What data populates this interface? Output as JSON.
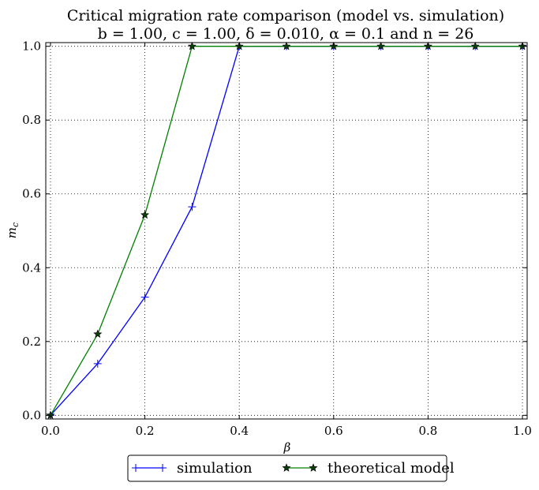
{
  "chart_data": {
    "type": "line",
    "title": "Critical migration rate comparison (model vs. simulation)",
    "subtitle": "b = 1.00, c = 1.00, δ = 0.010, α = 0.1 and n = 26",
    "xlabel": "β",
    "ylabel": "m_c",
    "xlim": [
      -0.01,
      1.01
    ],
    "ylim": [
      -0.01,
      1.01
    ],
    "x_ticks": [
      "0.0",
      "0.2",
      "0.4",
      "0.6",
      "0.8",
      "1.0"
    ],
    "y_ticks": [
      "0.0",
      "0.2",
      "0.4",
      "0.6",
      "0.8",
      "1.0"
    ],
    "grid": true,
    "legend_position": "bottom-center, below plot",
    "x": [
      0.0,
      0.1,
      0.2,
      0.3,
      0.4,
      0.5,
      0.6,
      0.7,
      0.8,
      0.9,
      1.0
    ],
    "series": [
      {
        "name": "simulation",
        "color": "#0000ff",
        "marker": "plus",
        "values": [
          0.0,
          0.14,
          0.32,
          0.565,
          1.0,
          1.0,
          1.0,
          1.0,
          1.0,
          1.0,
          1.0
        ]
      },
      {
        "name": "theoretical model",
        "color": "#008000",
        "marker": "star",
        "values": [
          0.0,
          0.22,
          0.543,
          1.0,
          1.0,
          1.0,
          1.0,
          1.0,
          1.0,
          1.0,
          1.0
        ]
      }
    ]
  }
}
